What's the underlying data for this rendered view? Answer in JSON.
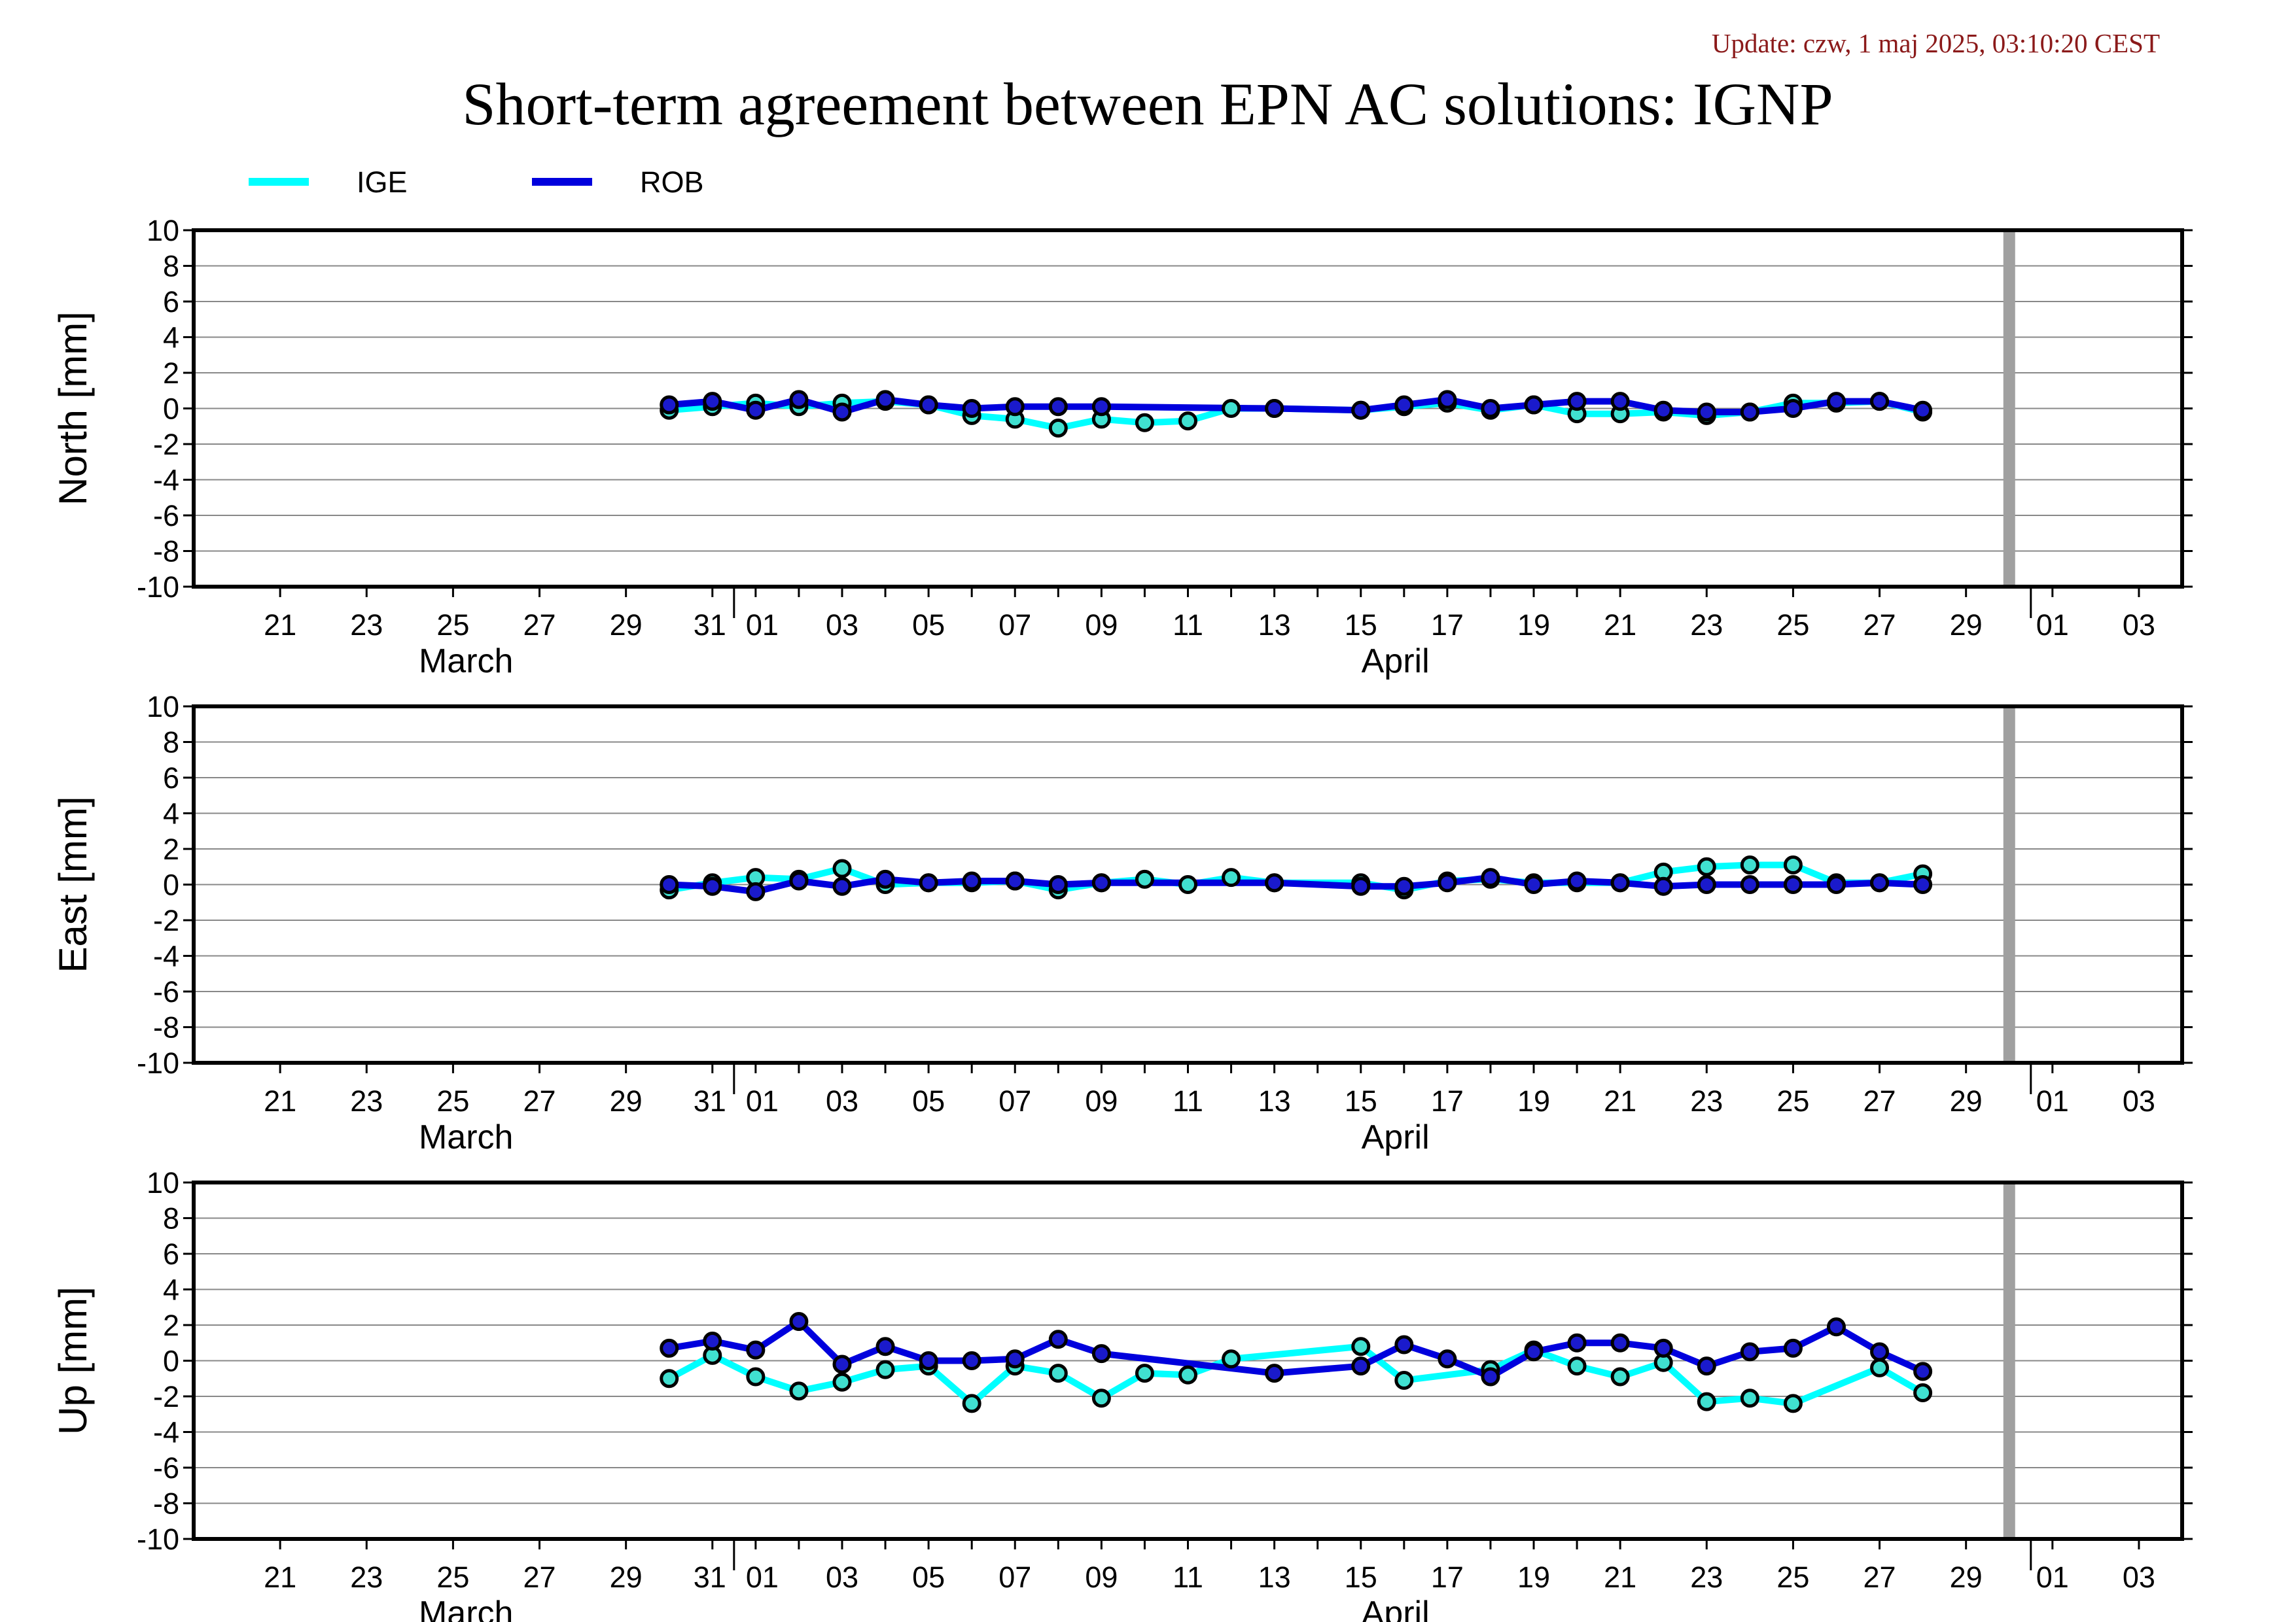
{
  "update_text": "Update: czw, 1 maj 2025, 03:10:20 CEST",
  "colors": {
    "IGE": "#00ffff",
    "ROB": "#0000dd",
    "marker_ige_fill": "#40e0d0",
    "marker_rob_fill": "#1a1acc",
    "current_day_bar": "#a0a0a0",
    "grid": "#888888"
  },
  "chart_data": {
    "type": "line",
    "title": "Short-term agreement between EPN AC solutions: IGNP",
    "legend": {
      "placement": "top-left",
      "entries": [
        "IGE",
        "ROB"
      ]
    },
    "x_range": [
      "2025-03-19",
      "2025-05-04"
    ],
    "current_day_marker": "2025-04-30",
    "x_tick_labels": [
      "21",
      "23",
      "25",
      "27",
      "29",
      "31",
      "01",
      "03",
      "05",
      "07",
      "09",
      "11",
      "13",
      "15",
      "17",
      "19",
      "21",
      "23",
      "25",
      "27",
      "29",
      "01",
      "03"
    ],
    "months": [
      "March",
      "April"
    ],
    "y_ticks": [
      "10",
      "8",
      "6",
      "4",
      "2",
      "0",
      "-2",
      "-4",
      "-6",
      "-8",
      "-10"
    ],
    "grid": true,
    "panels": [
      {
        "ylabel": "North [mm]",
        "ylim": [
          -10,
          10
        ],
        "series": [
          {
            "name": "IGE",
            "x": [
              "2025-03-30",
              "2025-03-31",
              "2025-04-01",
              "2025-04-02",
              "2025-04-03",
              "2025-04-04",
              "2025-04-05",
              "2025-04-06",
              "2025-04-07",
              "2025-04-08",
              "2025-04-09",
              "2025-04-10",
              "2025-04-11",
              "2025-04-12",
              "2025-04-13",
              "2025-04-15",
              "2025-04-16",
              "2025-04-17",
              "2025-04-18",
              "2025-04-19",
              "2025-04-20",
              "2025-04-21",
              "2025-04-22",
              "2025-04-23",
              "2025-04-24",
              "2025-04-25",
              "2025-04-26",
              "2025-04-27",
              "2025-04-28"
            ],
            "y": [
              -0.1,
              0.1,
              0.3,
              0.1,
              0.3,
              0.4,
              0.2,
              -0.4,
              -0.6,
              -1.1,
              -0.6,
              -0.8,
              -0.7,
              0.0,
              0.0,
              -0.1,
              0.1,
              0.3,
              -0.1,
              0.2,
              -0.3,
              -0.3,
              -0.2,
              -0.4,
              -0.2,
              0.3,
              0.3,
              0.4,
              -0.2
            ]
          },
          {
            "name": "ROB",
            "x": [
              "2025-03-30",
              "2025-03-31",
              "2025-04-01",
              "2025-04-02",
              "2025-04-03",
              "2025-04-04",
              "2025-04-05",
              "2025-04-06",
              "2025-04-07",
              "2025-04-08",
              "2025-04-09",
              "2025-04-13",
              "2025-04-15",
              "2025-04-16",
              "2025-04-17",
              "2025-04-18",
              "2025-04-19",
              "2025-04-20",
              "2025-04-21",
              "2025-04-22",
              "2025-04-23",
              "2025-04-24",
              "2025-04-25",
              "2025-04-26",
              "2025-04-27",
              "2025-04-28"
            ],
            "y": [
              0.2,
              0.4,
              -0.1,
              0.5,
              -0.2,
              0.5,
              0.2,
              0.0,
              0.1,
              0.1,
              0.1,
              0.0,
              -0.1,
              0.2,
              0.5,
              0.0,
              0.2,
              0.4,
              0.4,
              -0.1,
              -0.2,
              -0.2,
              0.0,
              0.4,
              0.4,
              -0.1
            ]
          }
        ]
      },
      {
        "ylabel": "East [mm]",
        "ylim": [
          -10,
          10
        ],
        "series": [
          {
            "name": "IGE",
            "x": [
              "2025-03-30",
              "2025-03-31",
              "2025-04-01",
              "2025-04-02",
              "2025-04-03",
              "2025-04-04",
              "2025-04-05",
              "2025-04-06",
              "2025-04-07",
              "2025-04-08",
              "2025-04-09",
              "2025-04-10",
              "2025-04-11",
              "2025-04-12",
              "2025-04-13",
              "2025-04-15",
              "2025-04-16",
              "2025-04-17",
              "2025-04-18",
              "2025-04-19",
              "2025-04-20",
              "2025-04-21",
              "2025-04-22",
              "2025-04-23",
              "2025-04-24",
              "2025-04-25",
              "2025-04-26",
              "2025-04-27",
              "2025-04-28"
            ],
            "y": [
              -0.3,
              0.1,
              0.4,
              0.3,
              0.9,
              0.0,
              0.1,
              0.1,
              0.2,
              -0.3,
              0.1,
              0.3,
              0.0,
              0.4,
              0.1,
              0.1,
              -0.3,
              0.2,
              0.3,
              0.1,
              0.1,
              0.1,
              0.7,
              1.0,
              1.1,
              1.1,
              0.1,
              0.1,
              0.6
            ]
          },
          {
            "name": "ROB",
            "x": [
              "2025-03-30",
              "2025-03-31",
              "2025-04-01",
              "2025-04-02",
              "2025-04-03",
              "2025-04-04",
              "2025-04-05",
              "2025-04-06",
              "2025-04-07",
              "2025-04-08",
              "2025-04-09",
              "2025-04-13",
              "2025-04-15",
              "2025-04-16",
              "2025-04-17",
              "2025-04-18",
              "2025-04-19",
              "2025-04-20",
              "2025-04-21",
              "2025-04-22",
              "2025-04-23",
              "2025-04-24",
              "2025-04-25",
              "2025-04-26",
              "2025-04-27",
              "2025-04-28"
            ],
            "y": [
              0.0,
              -0.1,
              -0.4,
              0.2,
              -0.1,
              0.3,
              0.1,
              0.2,
              0.2,
              0.0,
              0.1,
              0.1,
              -0.1,
              -0.1,
              0.1,
              0.4,
              0.0,
              0.2,
              0.1,
              -0.1,
              0.0,
              0.0,
              0.0,
              0.0,
              0.1,
              0.0
            ]
          }
        ]
      },
      {
        "ylabel": "Up [mm]",
        "ylim": [
          -10,
          10
        ],
        "series": [
          {
            "name": "IGE",
            "x": [
              "2025-03-30",
              "2025-03-31",
              "2025-04-01",
              "2025-04-02",
              "2025-04-03",
              "2025-04-04",
              "2025-04-05",
              "2025-04-06",
              "2025-04-07",
              "2025-04-08",
              "2025-04-09",
              "2025-04-10",
              "2025-04-11",
              "2025-04-12",
              "2025-04-15",
              "2025-04-16",
              "2025-04-18",
              "2025-04-19",
              "2025-04-20",
              "2025-04-21",
              "2025-04-22",
              "2025-04-23",
              "2025-04-24",
              "2025-04-25",
              "2025-04-27",
              "2025-04-28"
            ],
            "y": [
              -1.0,
              0.3,
              -0.9,
              -1.7,
              -1.2,
              -0.5,
              -0.3,
              -2.4,
              -0.3,
              -0.7,
              -2.1,
              -0.7,
              -0.8,
              0.1,
              0.8,
              -1.1,
              -0.5,
              0.6,
              -0.3,
              -0.9,
              -0.1,
              -2.3,
              -2.1,
              -2.4,
              -0.4,
              -1.8
            ]
          },
          {
            "name": "ROB",
            "x": [
              "2025-03-30",
              "2025-03-31",
              "2025-04-01",
              "2025-04-02",
              "2025-04-03",
              "2025-04-04",
              "2025-04-05",
              "2025-04-06",
              "2025-04-07",
              "2025-04-08",
              "2025-04-09",
              "2025-04-13",
              "2025-04-15",
              "2025-04-16",
              "2025-04-17",
              "2025-04-18",
              "2025-04-19",
              "2025-04-20",
              "2025-04-21",
              "2025-04-22",
              "2025-04-23",
              "2025-04-24",
              "2025-04-25",
              "2025-04-26",
              "2025-04-27",
              "2025-04-28"
            ],
            "y": [
              0.7,
              1.1,
              0.6,
              2.2,
              -0.2,
              0.8,
              0.0,
              0.0,
              0.1,
              1.2,
              0.4,
              -0.7,
              -0.3,
              0.9,
              0.1,
              -0.9,
              0.5,
              1.0,
              1.0,
              0.7,
              -0.3,
              0.5,
              0.7,
              1.9,
              0.5,
              -0.6
            ]
          }
        ]
      }
    ]
  }
}
